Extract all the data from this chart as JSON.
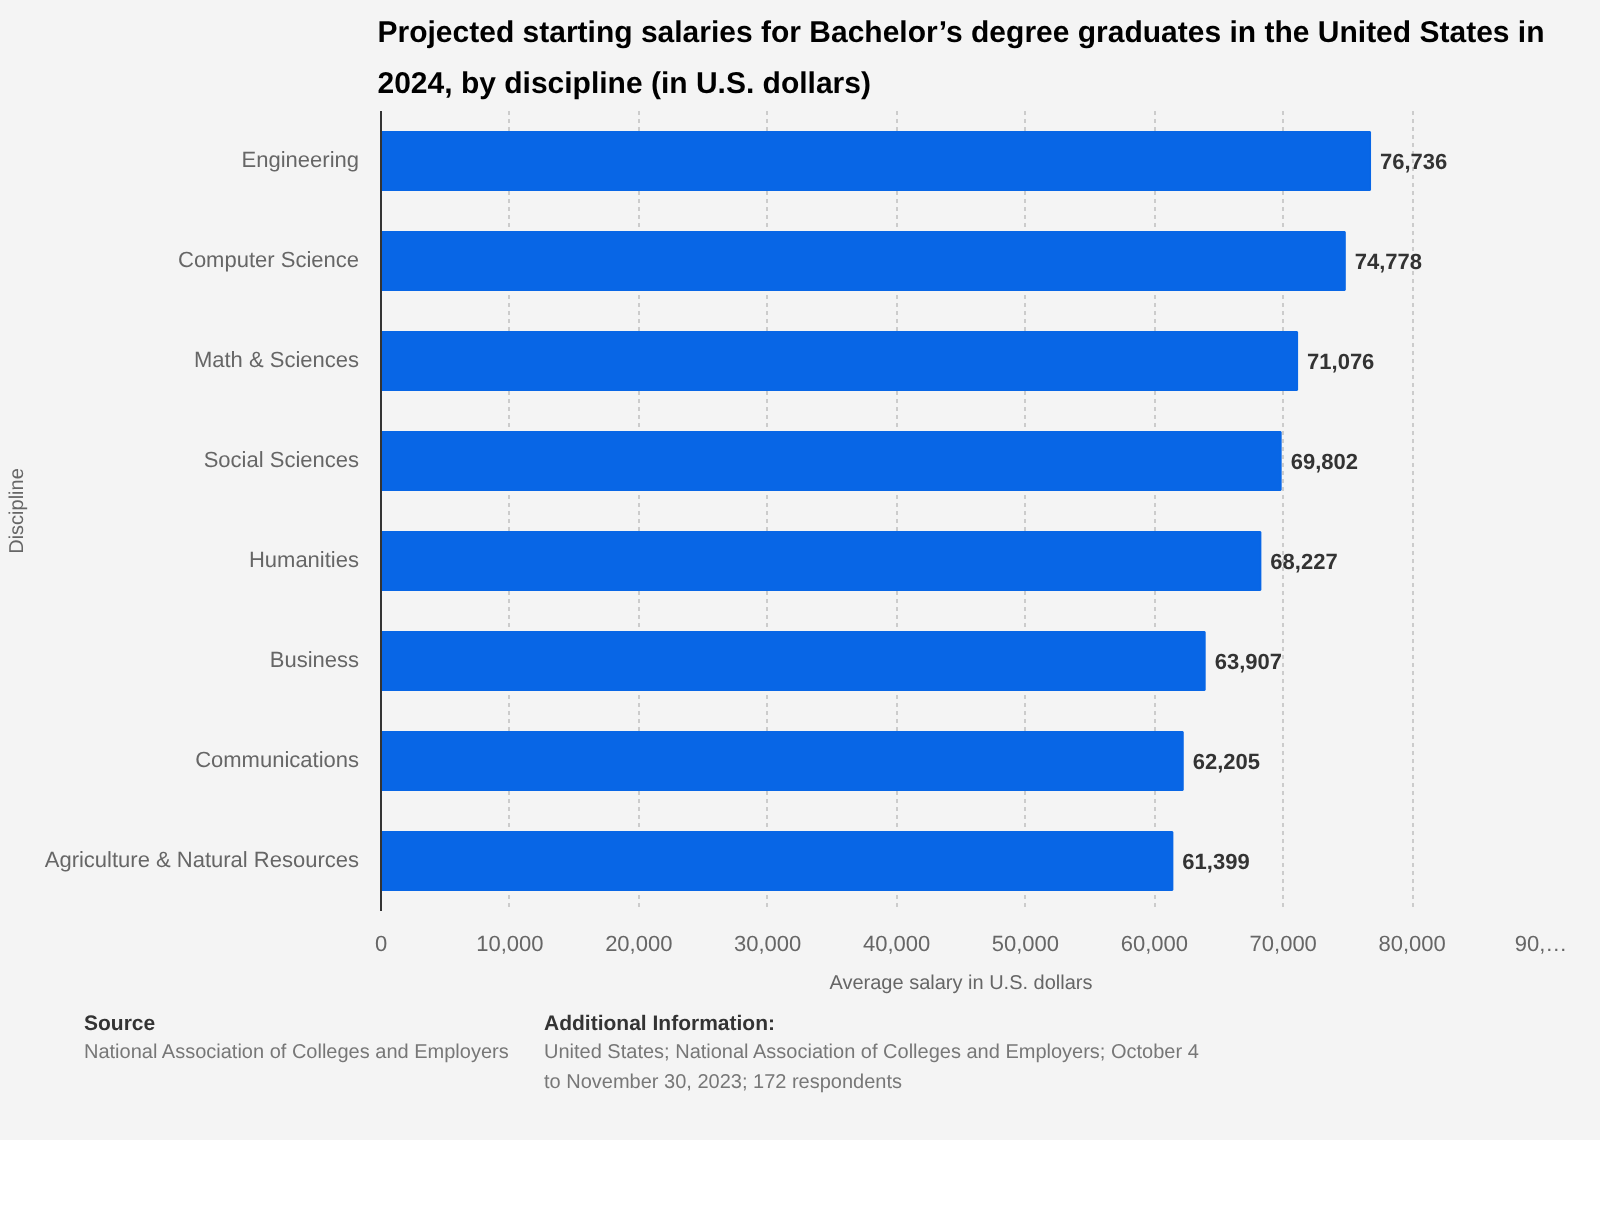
{
  "chart_data": {
    "type": "bar",
    "orientation": "horizontal",
    "title": "Projected starting salaries for Bachelor’s degree graduates in the United States in 2024, by discipline (in U.S. dollars)",
    "categories": [
      "Engineering",
      "Computer Science",
      "Math & Sciences",
      "Social Sciences",
      "Humanities",
      "Business",
      "Communications",
      "Agriculture & Natural Resources"
    ],
    "values": [
      76736,
      74778,
      71076,
      69802,
      68227,
      63907,
      62205,
      61399
    ],
    "color": "#0866e6",
    "value_labels": [
      "76,736",
      "74,778",
      "71,076",
      "69,802",
      "68,227",
      "63,907",
      "62,205",
      "61,399"
    ],
    "xlabel": "Average salary in U.S. dollars",
    "ylabel": "Discipline",
    "xlim": [
      0,
      90000
    ],
    "xticks": [
      0,
      {
        "value": 10000,
        "label": "10,000"
      },
      {
        "value": 20000,
        "label": "20,000"
      },
      {
        "value": 30000,
        "label": "30,000"
      },
      {
        "value": 40000,
        "label": "40,000"
      },
      {
        "value": 50000,
        "label": "50,000"
      },
      {
        "value": 60000,
        "label": "60,000"
      },
      {
        "value": 70000,
        "label": "70,000"
      },
      {
        "value": 80000,
        "label": "80,000"
      },
      {
        "value": 90000,
        "label": "90,…"
      }
    ],
    "grid": "x",
    "annotations": [
      "Source",
      "National Association of Colleges and Employers",
      "Additional Information:",
      "United States; National Association of Colleges and Employers; October 4\nto November 30, 2023; 172 respondents"
    ]
  }
}
